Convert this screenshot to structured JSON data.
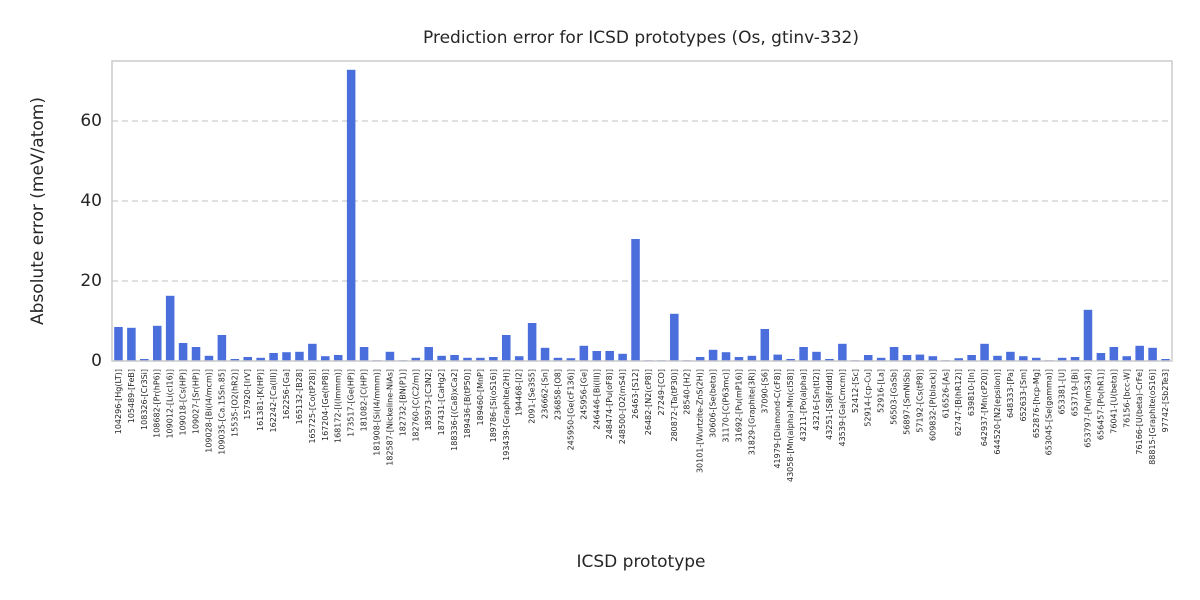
{
  "chart_data": {
    "type": "bar",
    "title": "Prediction error for ICSD prototypes (Os, gtinv-332)",
    "x_label": "ICSD prototype",
    "y_label": "Absolute error (meV/atom)",
    "color": "#4a6fdc",
    "grid": true,
    "ylim": [
      0,
      75
    ],
    "yticks": [
      0,
      20,
      40,
      60
    ],
    "categories": [
      "104296-[Hg(LT)]",
      "105489-[FeB]",
      "108326-[Cr3Si]",
      "108682-[Pr(hP6)]",
      "109012-[Li(cI16)]",
      "109018-[Cs(HP)]",
      "109027-[Sr(HP)]",
      "109028-[Bi(I4/mcm)]",
      "109035-[Ca.15Sn.85]",
      "15535-[O2(hR2)]",
      "157920-[IrV]",
      "161381-[K(HP)]",
      "162242-[Ca(III)]",
      "162256-[Ga]",
      "165132-[B28]",
      "165725-[Co(tP28)]",
      "167204-[Ge(hP8)]",
      "168172-[I(Immm)]",
      "173517-[Ge(HP)]",
      "181082-[C(HP)]",
      "181908-[Si(I4/mmm)]",
      "182587-[Nickeline-NiAs]",
      "182732-[BN(P1)]",
      "182760-[C(C2/m)]",
      "185973-[C3N2]",
      "187431-[CaHg2]",
      "188336-[(Ca8)xCa2]",
      "189436-[B(tP50)]",
      "189460-[MnP]",
      "189786-[Si(oS16)]",
      "193439-[Graphite(2H)]",
      "194468-[I2]",
      "2091-[Se3S5]",
      "236662-[Sn]",
      "236858-[O8]",
      "245950-[Ge(cF136)]",
      "245956-[Ge]",
      "246446-[Bi(III)]",
      "248474-[Pu(oF8)]",
      "248500-[O2(mS4)]",
      "26463-[S12]",
      "26482-[N2(cP8)]",
      "27249-[CO]",
      "280872-[Ta(tP30)]",
      "28540-[H2]",
      "30101-[Wurtzite-ZnS(2H)]",
      "30606-[Se(beta)]",
      "31170-[C(P63mc)]",
      "31692-[Pu(mP16)]",
      "31829-[Graphite(3R)]",
      "37090-[S6]",
      "41979-[Diamond-C(cF8)]",
      "43058-[Mn(alpha)-Mn(cI58)]",
      "43211-[Po(alpha)]",
      "43216-[Sn(tI2)]",
      "43251-[S8(Fddd)]",
      "43539-[Ga(Cmcm)]",
      "52412-[Sc]",
      "52914-[cp-Cu]",
      "52916-[La]",
      "56503-[GaSb]",
      "56897-[SmNiSb]",
      "57192-[Cs(tP8)]",
      "609832-[P(black)]",
      "616526-[As]",
      "62747-[B(hR12)]",
      "639810-[In]",
      "642937-[Mn(cP20)]",
      "644520-[N2(epsilon)]",
      "648333-[Pa]",
      "652633-[Sm]",
      "652876-[hcp-Mg]",
      "653045-[Se(gamma)]",
      "653381-[U]",
      "653719-[Bi]",
      "653797-[Pu(mS34)]",
      "656457-[Po(hR1)]",
      "76041-[U(beta)]",
      "76156-[bcc-W]",
      "76166-[U(beta)-CrFe]",
      "88815-[Graphite(oS16)]",
      "97742-[Sb2Te3]"
    ],
    "values": [
      8.5,
      8.3,
      0.5,
      8.8,
      16.3,
      4.5,
      3.5,
      1.3,
      6.5,
      0.5,
      1.0,
      0.8,
      2.0,
      2.2,
      2.3,
      4.3,
      1.2,
      1.5,
      72.8,
      3.5,
      0.2,
      2.3,
      0.2,
      0.8,
      3.5,
      1.3,
      1.5,
      0.8,
      0.8,
      1.0,
      6.5,
      1.2,
      9.5,
      3.3,
      0.8,
      0.7,
      3.8,
      2.5,
      2.5,
      1.8,
      30.5,
      0.2,
      0.2,
      11.8,
      0.2,
      1.0,
      2.8,
      2.2,
      1.0,
      1.3,
      8.0,
      1.6,
      0.5,
      3.5,
      2.3,
      0.5,
      4.3,
      0.2,
      1.5,
      0.8,
      3.5,
      1.5,
      1.6,
      1.2,
      0.2,
      0.7,
      1.5,
      4.3,
      1.3,
      2.3,
      1.2,
      0.8,
      0.2,
      0.8,
      1.0,
      12.8,
      2.0,
      3.5,
      1.2,
      3.8,
      3.3,
      0.5
    ]
  }
}
